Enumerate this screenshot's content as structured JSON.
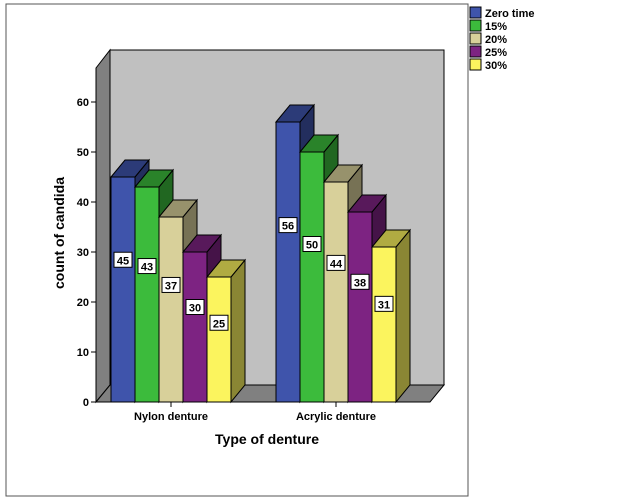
{
  "chart_data": {
    "type": "bar",
    "xlabel": "Type of denture",
    "ylabel": "count of candida",
    "categories": [
      "Nylon denture",
      "Acrylic denture"
    ],
    "series": [
      {
        "name": "Zero time",
        "color": "#3f54ab",
        "values": [
          45,
          56
        ]
      },
      {
        "name": "15%",
        "color": "#3cbb3c",
        "values": [
          43,
          50
        ]
      },
      {
        "name": "20%",
        "color": "#d8d09a",
        "values": [
          37,
          44
        ]
      },
      {
        "name": "25%",
        "color": "#7d2382",
        "values": [
          30,
          38
        ]
      },
      {
        "name": "30%",
        "color": "#fbf45e",
        "values": [
          25,
          31
        ]
      }
    ],
    "ylim": [
      0,
      60
    ],
    "yticks": [
      0,
      10,
      20,
      30,
      40,
      50,
      60
    ],
    "grid": false,
    "legend_position": "top-right",
    "background_color": "#c0c0c0"
  }
}
